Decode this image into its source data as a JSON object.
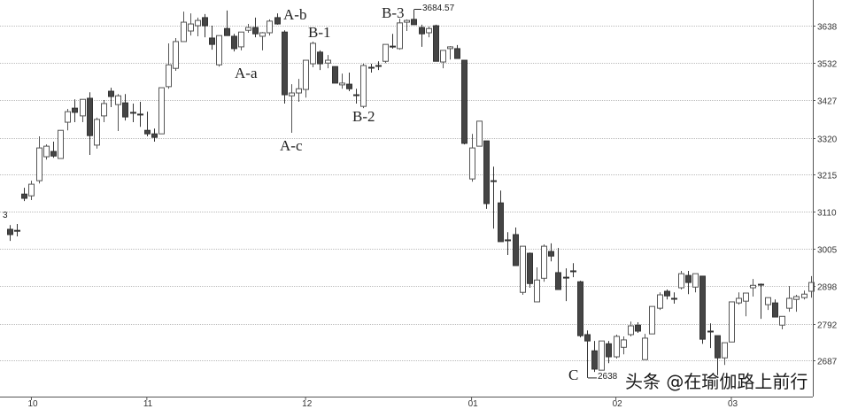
{
  "chart_data": {
    "type": "candlestick",
    "title": "",
    "xlabel": "",
    "ylabel": "",
    "ylim": [
      2585,
      3711
    ],
    "grid": true,
    "y_ticks": [
      3638,
      3532,
      3427,
      3320,
      3215,
      3110,
      3005,
      2898,
      2792,
      2687
    ],
    "x_ticks": [
      {
        "label": "10",
        "candle": 3
      },
      {
        "label": "11",
        "candle": 19
      },
      {
        "label": "12",
        "candle": 41
      },
      {
        "label": "01",
        "candle": 64
      },
      {
        "label": "02",
        "candle": 84
      },
      {
        "label": "03",
        "candle": 100
      }
    ],
    "colors": {
      "up_body": "#ffffff",
      "up_outline": "#555555",
      "down_body": "#454545",
      "grid": "#bbbbbb"
    },
    "ohlc": [
      [
        3060,
        3072,
        3027,
        3045
      ],
      [
        3057,
        3075,
        3040,
        3056
      ],
      [
        3160,
        3178,
        3140,
        3148
      ],
      [
        3155,
        3198,
        3143,
        3188
      ],
      [
        3198,
        3324,
        3190,
        3291
      ],
      [
        3266,
        3301,
        3258,
        3296
      ],
      [
        3281,
        3309,
        3263,
        3268
      ],
      [
        3261,
        3341,
        3261,
        3341
      ],
      [
        3364,
        3402,
        3341,
        3394
      ],
      [
        3404,
        3429,
        3364,
        3392
      ],
      [
        3382,
        3429,
        3364,
        3429
      ],
      [
        3432,
        3449,
        3271,
        3326
      ],
      [
        3299,
        3377,
        3289,
        3372
      ],
      [
        3382,
        3427,
        3364,
        3417
      ],
      [
        3452,
        3462,
        3407,
        3437
      ],
      [
        3414,
        3444,
        3339,
        3439
      ],
      [
        3419,
        3444,
        3369,
        3379
      ],
      [
        3392,
        3417,
        3364,
        3391
      ],
      [
        3387,
        3422,
        3351,
        3386
      ],
      [
        3341,
        3394,
        3324,
        3331
      ],
      [
        3331,
        3346,
        3309,
        3321
      ],
      [
        3331,
        3462,
        3331,
        3462
      ],
      [
        3465,
        3588,
        3459,
        3527
      ],
      [
        3517,
        3603,
        3510,
        3593
      ],
      [
        3593,
        3678,
        3593,
        3648
      ],
      [
        3623,
        3673,
        3610,
        3643
      ],
      [
        3638,
        3661,
        3608,
        3653
      ],
      [
        3661,
        3671,
        3605,
        3638
      ],
      [
        3603,
        3638,
        3570,
        3585
      ],
      [
        3527,
        3610,
        3522,
        3610
      ],
      [
        3630,
        3681,
        3610,
        3610
      ],
      [
        3608,
        3615,
        3565,
        3573
      ],
      [
        3578,
        3620,
        3568,
        3620
      ],
      [
        3625,
        3643,
        3618,
        3633
      ],
      [
        3633,
        3661,
        3605,
        3615
      ],
      [
        3608,
        3620,
        3568,
        3618
      ],
      [
        3618,
        3656,
        3610,
        3651
      ],
      [
        3661,
        3673,
        3641,
        3643
      ],
      [
        3620,
        3625,
        3417,
        3442
      ],
      [
        3439,
        3472,
        3334,
        3447
      ],
      [
        3447,
        3487,
        3422,
        3459
      ],
      [
        3457,
        3540,
        3434,
        3540
      ],
      [
        3530,
        3593,
        3520,
        3588
      ],
      [
        3563,
        3568,
        3512,
        3530
      ],
      [
        3532,
        3555,
        3517,
        3540
      ],
      [
        3522,
        3522,
        3475,
        3475
      ],
      [
        3470,
        3502,
        3459,
        3475
      ],
      [
        3472,
        3505,
        3452,
        3459
      ],
      [
        3442,
        3459,
        3417,
        3441
      ],
      [
        3409,
        3530,
        3404,
        3525
      ],
      [
        3520,
        3530,
        3505,
        3519
      ],
      [
        3525,
        3537,
        3512,
        3524
      ],
      [
        3537,
        3585,
        3532,
        3585
      ],
      [
        3580,
        3615,
        3573,
        3579
      ],
      [
        3573,
        3658,
        3570,
        3646
      ],
      [
        3648,
        3656,
        3623,
        3653
      ],
      [
        3656,
        3684.57,
        3641,
        3641
      ],
      [
        3633,
        3641,
        3578,
        3615
      ],
      [
        3618,
        3636,
        3605,
        3630
      ],
      [
        3638,
        3641,
        3537,
        3537
      ],
      [
        3535,
        3568,
        3517,
        3568
      ],
      [
        3573,
        3580,
        3542,
        3578
      ],
      [
        3573,
        3583,
        3545,
        3545
      ],
      [
        3540,
        3540,
        3301,
        3304
      ],
      [
        3203,
        3331,
        3195,
        3291
      ],
      [
        3296,
        3367,
        3296,
        3367
      ],
      [
        3311,
        3311,
        3118,
        3133
      ],
      [
        3198,
        3238,
        3062,
        3197
      ],
      [
        3135,
        3170,
        3025,
        3025
      ],
      [
        3030,
        3052,
        2987,
        3029
      ],
      [
        3045,
        3065,
        2957,
        2957
      ],
      [
        2881,
        3012,
        2874,
        3012
      ],
      [
        2992,
        2994,
        2894,
        2906
      ],
      [
        2854,
        2952,
        2854,
        2916
      ],
      [
        2921,
        3017,
        2911,
        3012
      ],
      [
        2997,
        3020,
        2969,
        2984
      ],
      [
        2937,
        3007,
        2889,
        2889
      ],
      [
        2924,
        2949,
        2856,
        2923
      ],
      [
        2942,
        2964,
        2924,
        2941
      ],
      [
        2911,
        2914,
        2753,
        2758
      ],
      [
        2761,
        2773,
        2638,
        2743
      ],
      [
        2715,
        2743,
        2655,
        2663
      ],
      [
        2660,
        2743,
        2660,
        2743
      ],
      [
        2735,
        2743,
        2680,
        2698
      ],
      [
        2698,
        2761,
        2693,
        2756
      ],
      [
        2725,
        2756,
        2705,
        2746
      ],
      [
        2761,
        2798,
        2756,
        2786
      ],
      [
        2788,
        2796,
        2766,
        2771
      ],
      [
        2690,
        2763,
        2690,
        2751
      ],
      [
        2763,
        2841,
        2763,
        2841
      ],
      [
        2836,
        2881,
        2831,
        2874
      ],
      [
        2884,
        2889,
        2861,
        2871
      ],
      [
        2864,
        2881,
        2849,
        2863
      ],
      [
        2894,
        2942,
        2889,
        2934
      ],
      [
        2929,
        2942,
        2876,
        2909
      ],
      [
        2896,
        2934,
        2881,
        2934
      ],
      [
        2927,
        2927,
        2735,
        2748
      ],
      [
        2771,
        2793,
        2723,
        2770
      ],
      [
        2758,
        2758,
        2645,
        2695
      ],
      [
        2695,
        2738,
        2675,
        2738
      ],
      [
        2740,
        2854,
        2740,
        2854
      ],
      [
        2851,
        2881,
        2846,
        2864
      ],
      [
        2856,
        2879,
        2813,
        2879
      ],
      [
        2894,
        2919,
        2869,
        2901
      ],
      [
        2904,
        2906,
        2806,
        2903
      ],
      [
        2846,
        2866,
        2831,
        2866
      ],
      [
        2851,
        2861,
        2811,
        2811
      ],
      [
        2788,
        2813,
        2776,
        2813
      ],
      [
        2836,
        2899,
        2826,
        2864
      ],
      [
        2861,
        2874,
        2826,
        2869
      ],
      [
        2866,
        2886,
        2861,
        2876
      ],
      [
        2884,
        2927,
        2866,
        2909
      ]
    ],
    "annotations": {
      "a_a": "A-a",
      "a_b": "A-b",
      "a_c": "A-c",
      "b_1": "B-1",
      "b_2": "B-2",
      "b_3": "B-3",
      "c": "C",
      "high_label": "3684.57",
      "low_label": "2638",
      "left_edge_label": "3"
    }
  },
  "watermark": "头条 @在瑜伽路上前行"
}
